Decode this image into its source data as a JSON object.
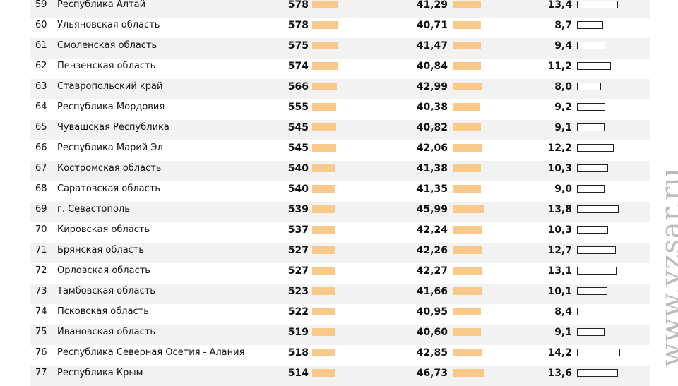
{
  "table": {
    "rows": [
      [
        "59",
        "Республика Алтай",
        "578",
        "41,29",
        "13,4"
      ],
      [
        "60",
        "Ульяновская область",
        "578",
        "40,71",
        "8,7"
      ],
      [
        "61",
        "Смоленская область",
        "575",
        "41,47",
        "9,4"
      ],
      [
        "62",
        "Пензенская область",
        "574",
        "40,84",
        "11,2"
      ],
      [
        "63",
        "Ставропольский край",
        "566",
        "42,99",
        "8,0"
      ],
      [
        "64",
        "Республика Мордовия",
        "555",
        "40,38",
        "9,2"
      ],
      [
        "65",
        "Чувашская Республика",
        "545",
        "40,82",
        "9,1"
      ],
      [
        "66",
        "Республика Марий Эл",
        "545",
        "42,06",
        "12,2"
      ],
      [
        "67",
        "Костромская область",
        "540",
        "41,38",
        "10,3"
      ],
      [
        "68",
        "Саратовская область",
        "540",
        "41,35",
        "9,0"
      ],
      [
        "69",
        "г. Севастополь",
        "539",
        "45,99",
        "13,8"
      ],
      [
        "70",
        "Кировская область",
        "537",
        "42,24",
        "10,3"
      ],
      [
        "71",
        "Брянская область",
        "527",
        "42,26",
        "12,7"
      ],
      [
        "72",
        "Орловская область",
        "527",
        "42,27",
        "13,1"
      ],
      [
        "73",
        "Тамбовская область",
        "523",
        "41,66",
        "10,1"
      ],
      [
        "74",
        "Псковская область",
        "522",
        "40,95",
        "8,4"
      ],
      [
        "75",
        "Ивановская область",
        "519",
        "40,60",
        "9,1"
      ],
      [
        "76",
        "Республика Северная Осетия - Алания",
        "518",
        "42,85",
        "14,2"
      ],
      [
        "77",
        "Республика Крым",
        "514",
        "46,73",
        "13,6"
      ]
    ]
  },
  "watermark": "www.vzsar.ru"
}
